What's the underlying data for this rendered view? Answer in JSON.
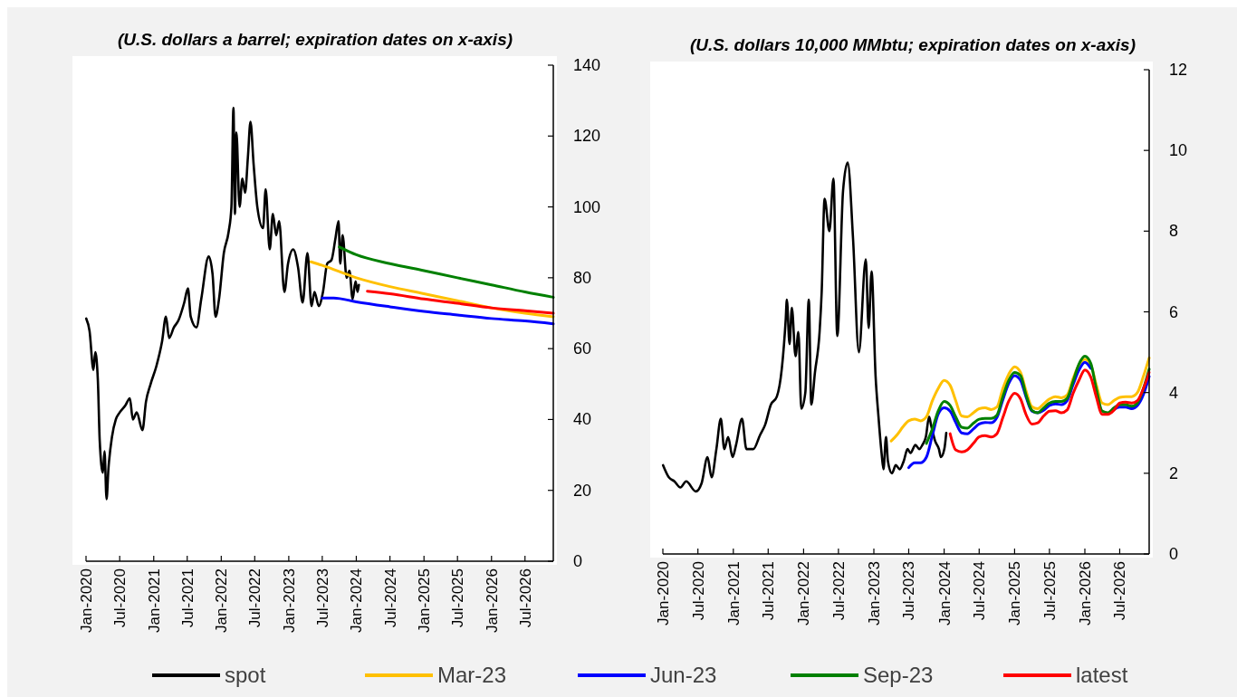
{
  "chart_data": [
    {
      "type": "line",
      "title": "(U.S. dollars a barrel; expiration dates on x-axis)",
      "xlim": [
        "2020-01",
        "2026-12"
      ],
      "xticks": [
        {
          "value": "2020-01",
          "label": "Jan-2020"
        },
        {
          "value": "2020-07",
          "label": "Jul-2020"
        },
        {
          "value": "2021-01",
          "label": "Jan-2021"
        },
        {
          "value": "2021-07",
          "label": "Jul-2021"
        },
        {
          "value": "2022-01",
          "label": "Jan-2022"
        },
        {
          "value": "2022-07",
          "label": "Jul-2022"
        },
        {
          "value": "2023-01",
          "label": "Jan-2023"
        },
        {
          "value": "2023-07",
          "label": "Jul-2023"
        },
        {
          "value": "2024-01",
          "label": "Jan-2024"
        },
        {
          "value": "2024-07",
          "label": "Jul-2024"
        },
        {
          "value": "2025-01",
          "label": "Jan-2025"
        },
        {
          "value": "2025-07",
          "label": "Jul-2025"
        },
        {
          "value": "2026-01",
          "label": "Jan-2026"
        },
        {
          "value": "2026-07",
          "label": "Jul-2026"
        }
      ],
      "ylim": [
        0,
        140
      ],
      "yticks": [
        0,
        20,
        40,
        60,
        80,
        100,
        120,
        140
      ],
      "grid": false,
      "legend": "bottom",
      "marker": "none",
      "line_style": "solid",
      "series": [
        {
          "name": "spot",
          "color": "#000000",
          "x": [
            "2020-01-02",
            "2020-01-20",
            "2020-02-10",
            "2020-02-20",
            "2020-03-05",
            "2020-03-15",
            "2020-04-01",
            "2020-04-10",
            "2020-04-21",
            "2020-05-01",
            "2020-05-20",
            "2020-06-10",
            "2020-07-01",
            "2020-08-01",
            "2020-08-25",
            "2020-09-10",
            "2020-10-01",
            "2020-11-01",
            "2020-11-20",
            "2020-12-15",
            "2021-01-15",
            "2021-02-15",
            "2021-03-08",
            "2021-03-25",
            "2021-04-20",
            "2021-05-15",
            "2021-06-15",
            "2021-07-05",
            "2021-07-20",
            "2021-08-20",
            "2021-09-15",
            "2021-10-25",
            "2021-11-15",
            "2021-12-01",
            "2021-12-20",
            "2022-01-15",
            "2022-02-10",
            "2022-02-25",
            "2022-03-08",
            "2022-03-16",
            "2022-03-24",
            "2022-04-10",
            "2022-04-25",
            "2022-05-10",
            "2022-05-25",
            "2022-06-08",
            "2022-06-25",
            "2022-07-15",
            "2022-08-15",
            "2022-08-29",
            "2022-09-20",
            "2022-10-07",
            "2022-10-25",
            "2022-11-10",
            "2022-12-08",
            "2022-12-28",
            "2023-01-25",
            "2023-02-20",
            "2023-03-17",
            "2023-04-12",
            "2023-05-04",
            "2023-05-20",
            "2023-06-12",
            "2023-07-05",
            "2023-07-28",
            "2023-08-20",
            "2023-09-10",
            "2023-09-27",
            "2023-10-06",
            "2023-10-19",
            "2023-11-10",
            "2023-11-25",
            "2023-12-12",
            "2023-12-28",
            "2024-01-08",
            "2024-01-15"
          ],
          "values": [
            68.5,
            65,
            54,
            59,
            51,
            34,
            25,
            31,
            17.5,
            26,
            35,
            40,
            42,
            44,
            46,
            40,
            42,
            37,
            45,
            50,
            55,
            62,
            69,
            63,
            66,
            68,
            73,
            77,
            69,
            66,
            74,
            86,
            81,
            69,
            74,
            87,
            93,
            100,
            128,
            98,
            121,
            100,
            108,
            104,
            114,
            124,
            112,
            100,
            94,
            105,
            88,
            98,
            92,
            96,
            76,
            84,
            88,
            83,
            73,
            87,
            72,
            76,
            72,
            76,
            84,
            85,
            91,
            96,
            84,
            92,
            80,
            82,
            74,
            79,
            76,
            78
          ]
        },
        {
          "name": "Mar-23",
          "color": "#ffc000",
          "x": [
            "2023-05",
            "2023-07",
            "2024-01",
            "2024-07",
            "2025-01",
            "2025-07",
            "2026-01",
            "2026-07",
            "2026-12"
          ],
          "values": [
            84.5,
            83.5,
            80,
            77.5,
            75.5,
            73.5,
            71.5,
            70,
            69
          ]
        },
        {
          "name": "Jun-23",
          "color": "#0000ff",
          "x": [
            "2023-07",
            "2023-09",
            "2024-01",
            "2024-07",
            "2025-01",
            "2025-07",
            "2026-01",
            "2026-07",
            "2026-12"
          ],
          "values": [
            74.3,
            74.3,
            73.2,
            71.8,
            70.5,
            69.5,
            68.5,
            67.8,
            67
          ]
        },
        {
          "name": "Sep-23",
          "color": "#008000",
          "x": [
            "2023-10",
            "2024-01",
            "2024-07",
            "2025-01",
            "2025-07",
            "2026-01",
            "2026-07",
            "2026-12"
          ],
          "values": [
            88.7,
            86.5,
            84,
            82,
            80,
            78,
            76,
            74.5
          ]
        },
        {
          "name": "latest",
          "color": "#ff0000",
          "x": [
            "2024-03",
            "2024-07",
            "2025-01",
            "2025-07",
            "2026-01",
            "2026-07",
            "2026-12"
          ],
          "values": [
            76.2,
            75.5,
            74,
            72.8,
            71.5,
            70.7,
            70
          ]
        }
      ]
    },
    {
      "type": "line",
      "title": "(U.S. dollars 10,000 MMbtu; expiration dates on x-axis)",
      "xlim": [
        "2020-01",
        "2026-12"
      ],
      "xticks": [
        {
          "value": "2020-01",
          "label": "Jan-2020"
        },
        {
          "value": "2020-07",
          "label": "Jul-2020"
        },
        {
          "value": "2021-01",
          "label": "Jan-2021"
        },
        {
          "value": "2021-07",
          "label": "Jul-2021"
        },
        {
          "value": "2022-01",
          "label": "Jan-2022"
        },
        {
          "value": "2022-07",
          "label": "Jul-2022"
        },
        {
          "value": "2023-01",
          "label": "Jan-2023"
        },
        {
          "value": "2023-07",
          "label": "Jul-2023"
        },
        {
          "value": "2024-01",
          "label": "Jan-2024"
        },
        {
          "value": "2024-07",
          "label": "Jul-2024"
        },
        {
          "value": "2025-01",
          "label": "Jan-2025"
        },
        {
          "value": "2025-07",
          "label": "Jul-2025"
        },
        {
          "value": "2026-01",
          "label": "Jan-2026"
        },
        {
          "value": "2026-07",
          "label": "Jul-2026"
        }
      ],
      "ylim": [
        0,
        12
      ],
      "yticks": [
        0,
        2,
        4,
        6,
        8,
        10,
        12
      ],
      "grid": false,
      "legend": "bottom",
      "marker": "none",
      "line_style": "solid",
      "series": [
        {
          "name": "spot",
          "color": "#000000",
          "x": [
            "2020-01-02",
            "2020-02-01",
            "2020-03-01",
            "2020-04-01",
            "2020-05-01",
            "2020-06-20",
            "2020-07-20",
            "2020-08-20",
            "2020-09-10",
            "2020-10-05",
            "2020-10-28",
            "2020-11-15",
            "2020-12-05",
            "2020-12-28",
            "2021-01-15",
            "2021-02-15",
            "2021-03-10",
            "2021-04-15",
            "2021-05-20",
            "2021-06-15",
            "2021-07-15",
            "2021-08-15",
            "2021-09-10",
            "2021-09-30",
            "2021-10-06",
            "2021-10-20",
            "2021-11-01",
            "2021-11-20",
            "2021-12-05",
            "2021-12-20",
            "2022-01-10",
            "2022-01-28",
            "2022-02-10",
            "2022-03-01",
            "2022-03-25",
            "2022-04-05",
            "2022-04-20",
            "2022-05-15",
            "2022-06-05",
            "2022-06-25",
            "2022-07-25",
            "2022-08-18",
            "2022-09-15",
            "2022-10-15",
            "2022-11-20",
            "2022-12-05",
            "2022-12-20",
            "2023-01-10",
            "2023-01-25",
            "2023-02-10",
            "2023-02-20",
            "2023-03-05",
            "2023-03-15",
            "2023-04-05",
            "2023-04-25",
            "2023-05-15",
            "2023-06-05",
            "2023-06-25",
            "2023-07-10",
            "2023-08-05",
            "2023-08-25",
            "2023-09-10",
            "2023-09-28",
            "2023-10-15",
            "2023-10-25",
            "2023-11-15",
            "2023-12-05",
            "2023-12-15",
            "2024-01-02",
            "2024-01-12"
          ],
          "values": [
            2.2,
            1.9,
            1.8,
            1.65,
            1.8,
            1.55,
            1.75,
            2.4,
            1.9,
            2.6,
            3.35,
            2.6,
            2.9,
            2.4,
            2.7,
            3.35,
            2.6,
            2.6,
            2.95,
            3.2,
            3.7,
            3.9,
            4.6,
            5.8,
            6.3,
            5.2,
            6.1,
            4.9,
            5.5,
            3.6,
            4.0,
            6.3,
            3.7,
            4.5,
            5.5,
            6.5,
            8.8,
            8.0,
            9.3,
            5.4,
            9.0,
            9.7,
            7.8,
            5.0,
            7.3,
            5.6,
            7.0,
            4.4,
            3.4,
            2.5,
            2.1,
            2.9,
            2.3,
            2.0,
            2.2,
            2.1,
            2.3,
            2.6,
            2.5,
            2.7,
            2.6,
            2.7,
            2.9,
            3.4,
            3.2,
            2.8,
            2.6,
            2.4,
            2.6,
            3.0
          ]
        },
        {
          "name": "Mar-23",
          "color": "#ffc000",
          "x": [
            "2023-04",
            "2023-05",
            "2023-06",
            "2023-07",
            "2023-08",
            "2023-09",
            "2023-10",
            "2023-11",
            "2023-12",
            "2024-01",
            "2024-02",
            "2024-03",
            "2024-04",
            "2024-05",
            "2024-06",
            "2024-07",
            "2024-08",
            "2024-09",
            "2024-10",
            "2024-11",
            "2024-12",
            "2025-01",
            "2025-02",
            "2025-03",
            "2025-04",
            "2025-05",
            "2025-06",
            "2025-07",
            "2025-08",
            "2025-09",
            "2025-10",
            "2025-11",
            "2025-12",
            "2026-01",
            "2026-02",
            "2026-03",
            "2026-04",
            "2026-05",
            "2026-06",
            "2026-07",
            "2026-08",
            "2026-09",
            "2026-10",
            "2026-11",
            "2026-12"
          ],
          "values": [
            2.8,
            2.95,
            3.15,
            3.3,
            3.34,
            3.3,
            3.4,
            3.8,
            4.1,
            4.3,
            4.18,
            3.8,
            3.42,
            3.4,
            3.5,
            3.6,
            3.62,
            3.58,
            3.64,
            4.1,
            4.45,
            4.64,
            4.5,
            4.05,
            3.65,
            3.6,
            3.72,
            3.84,
            3.9,
            3.87,
            3.94,
            4.35,
            4.68,
            4.82,
            4.68,
            4.2,
            3.74,
            3.7,
            3.8,
            3.88,
            3.9,
            3.9,
            4.0,
            4.4,
            4.86
          ]
        },
        {
          "name": "Jun-23",
          "color": "#0000ff",
          "x": [
            "2023-07",
            "2023-08",
            "2023-09",
            "2023-10",
            "2023-11",
            "2023-12",
            "2024-01",
            "2024-02",
            "2024-03",
            "2024-04",
            "2024-05",
            "2024-06",
            "2024-07",
            "2024-08",
            "2024-09",
            "2024-10",
            "2024-11",
            "2024-12",
            "2025-01",
            "2025-02",
            "2025-03",
            "2025-04",
            "2025-05",
            "2025-06",
            "2025-07",
            "2025-08",
            "2025-09",
            "2025-10",
            "2025-11",
            "2025-12",
            "2026-01",
            "2026-02",
            "2026-03",
            "2026-04",
            "2026-05",
            "2026-06",
            "2026-07",
            "2026-08",
            "2026-09",
            "2026-10",
            "2026-11",
            "2026-12"
          ],
          "values": [
            2.14,
            2.26,
            2.26,
            2.4,
            2.94,
            3.46,
            3.62,
            3.54,
            3.26,
            3.0,
            2.98,
            3.1,
            3.22,
            3.26,
            3.25,
            3.38,
            3.82,
            4.22,
            4.42,
            4.3,
            3.9,
            3.54,
            3.5,
            3.56,
            3.68,
            3.72,
            3.7,
            3.8,
            4.2,
            4.55,
            4.75,
            4.6,
            null,
            null,
            null,
            3.58,
            3.64,
            3.64,
            3.6,
            3.68,
            3.95,
            4.4
          ]
        },
        {
          "name": "Sep-23",
          "color": "#008000",
          "x": [
            "2023-10",
            "2023-11",
            "2023-12",
            "2024-01",
            "2024-02",
            "2024-03",
            "2024-04",
            "2024-05",
            "2024-06",
            "2024-07",
            "2024-08",
            "2024-09",
            "2024-10",
            "2024-11",
            "2024-12",
            "2025-01",
            "2025-02",
            "2025-03",
            "2025-04",
            "2025-05",
            "2025-06",
            "2025-07",
            "2025-08",
            "2025-09",
            "2025-10",
            "2025-11",
            "2025-12",
            "2026-01",
            "2026-02",
            "2026-03",
            "2026-04",
            "2026-05",
            "2026-06",
            "2026-07",
            "2026-08",
            "2026-09",
            "2026-10",
            "2026-11",
            "2026-12"
          ],
          "values": [
            2.74,
            3.1,
            3.54,
            3.78,
            3.68,
            3.4,
            3.14,
            3.12,
            3.24,
            3.34,
            3.36,
            3.36,
            3.44,
            3.9,
            4.3,
            4.5,
            4.42,
            3.95,
            3.56,
            3.5,
            3.62,
            3.74,
            3.78,
            3.78,
            3.86,
            4.28,
            4.7,
            4.9,
            4.72,
            4.1,
            3.54,
            3.5,
            3.62,
            3.7,
            3.7,
            3.66,
            3.74,
            4.1,
            4.58
          ]
        },
        {
          "name": "latest",
          "color": "#ff0000",
          "x": [
            "2024-02",
            "2024-03",
            "2024-04",
            "2024-05",
            "2024-06",
            "2024-07",
            "2024-08",
            "2024-09",
            "2024-10",
            "2024-11",
            "2024-12",
            "2025-01",
            "2025-02",
            "2025-03",
            "2025-04",
            "2025-05",
            "2025-06",
            "2025-07",
            "2025-08",
            "2025-09",
            "2025-10",
            "2025-11",
            "2025-12",
            "2026-01",
            "2026-02",
            "2026-03",
            "2026-04",
            "2026-05",
            "2026-06",
            "2026-07",
            "2026-08",
            "2026-09",
            "2026-10",
            "2026-11",
            "2026-12"
          ],
          "values": [
            2.98,
            2.58,
            2.53,
            2.58,
            2.74,
            2.9,
            2.93,
            2.9,
            2.98,
            3.38,
            3.78,
            3.98,
            3.84,
            3.46,
            3.22,
            3.25,
            3.42,
            3.54,
            3.55,
            3.5,
            3.57,
            3.98,
            4.3,
            4.56,
            4.38,
            3.9,
            3.46,
            3.46,
            3.56,
            3.74,
            3.76,
            3.74,
            3.8,
            4.1,
            4.5
          ]
        }
      ]
    }
  ]
}
